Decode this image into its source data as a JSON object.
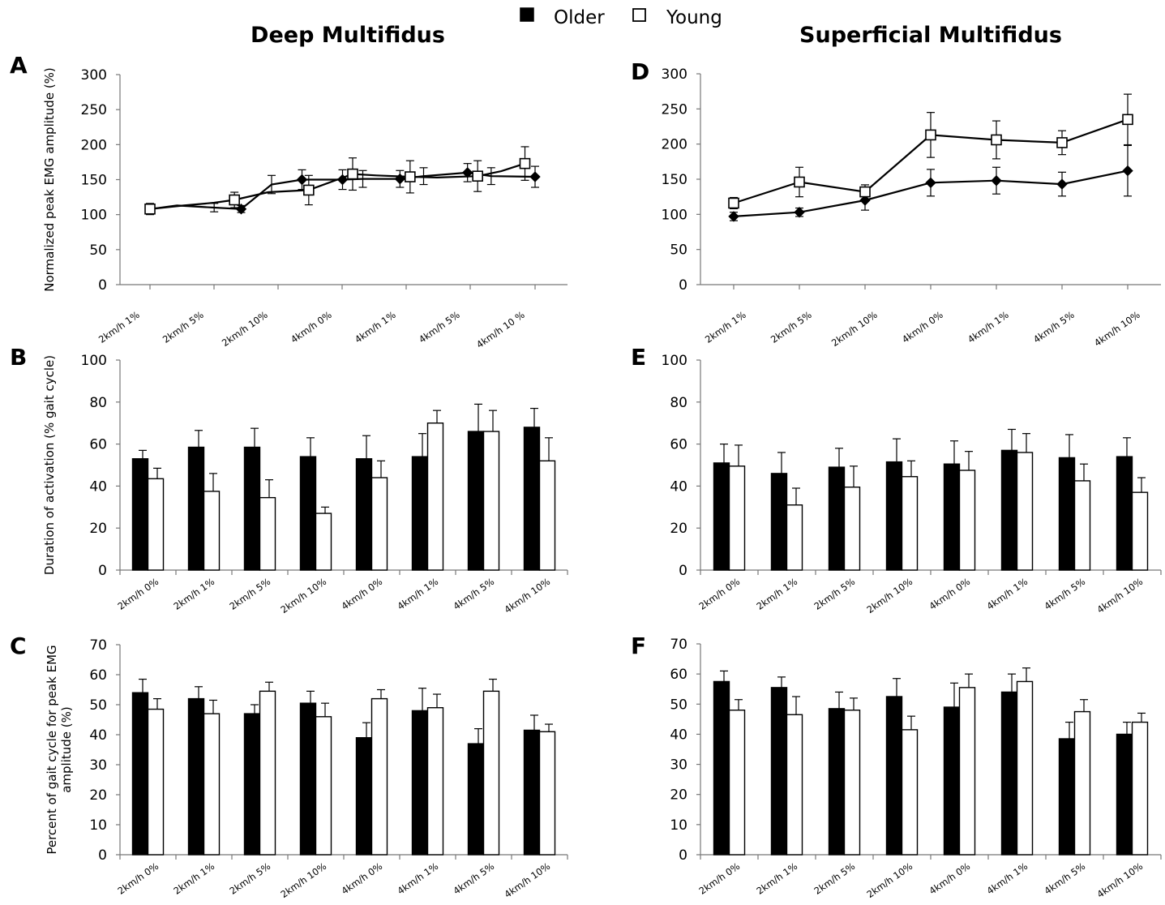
{
  "figure": {
    "column_titles": [
      "Deep Multifidus",
      "Superficial Multifidus"
    ],
    "legend": [
      {
        "label": "Older",
        "marker": "filled-square",
        "color": "#000000"
      },
      {
        "label": "Young",
        "marker": "open-square",
        "color": "#ffffff"
      }
    ]
  },
  "chart_data": [
    {
      "panel": "A",
      "type": "line",
      "ylabel": "Normalized peak EMG amplitude (%)",
      "ylim": [
        0,
        300
      ],
      "yticks": [
        0,
        50,
        100,
        150,
        200,
        250,
        300
      ],
      "categories": [
        "2km/h 1%",
        "2km/h 5%",
        "2km/h 10%",
        "4km/h 0%",
        "4km/h 1%",
        "4km/h 5%",
        "4km/h 10 %"
      ],
      "x": [
        0.5,
        1.3,
        2.4,
        3.2,
        4.1,
        5.0,
        6.2,
        6.8,
        7.9,
        8.6,
        9.9,
        10.6,
        11.9
      ],
      "series": [
        {
          "name": "Older",
          "marker": "diamond",
          "x": [
            0.5,
            1.3,
            2.4,
            3.2,
            4.1,
            5.0,
            6.2,
            6.8,
            7.9,
            8.6,
            9.9,
            10.6,
            11.9
          ],
          "values": [
            108,
            113,
            110,
            108,
            143,
            150,
            150,
            151,
            151,
            155,
            160,
            155,
            154
          ],
          "errors": [
            6,
            0,
            6,
            5,
            13,
            14,
            14,
            12,
            12,
            12,
            13,
            12,
            15
          ]
        },
        {
          "name": "Young",
          "marker": "square",
          "x": [
            0.5,
            1.5,
            2.4,
            3.0,
            4.0,
            5.2,
            6.5,
            7.2,
            8.2,
            9.0,
            10.2,
            10.9,
            11.6
          ],
          "values": [
            108,
            113,
            117,
            121,
            132,
            135,
            158,
            156,
            154,
            153,
            155,
            162,
            173
          ],
          "errors": [
            8,
            0,
            0,
            11,
            0,
            21,
            23,
            0,
            23,
            0,
            22,
            0,
            24
          ]
        }
      ]
    },
    {
      "panel": "B",
      "type": "bar",
      "ylabel": "Duration of activation (% gait cycle)",
      "ylim": [
        0,
        100
      ],
      "yticks": [
        0,
        20,
        40,
        60,
        80,
        100
      ],
      "categories": [
        "2km/h 0%",
        "2km/h 1%",
        "2km/h 5%",
        "2km/h 10%",
        "4km/h 0%",
        "4km/h 1%",
        "4km/h 5%",
        "4km/h 10%"
      ],
      "series": [
        {
          "name": "Older",
          "values": [
            53,
            58.5,
            58.5,
            54,
            53,
            54,
            66,
            68
          ],
          "errors": [
            4,
            8,
            9,
            9,
            11,
            11,
            13,
            9
          ]
        },
        {
          "name": "Young",
          "values": [
            43.5,
            37.5,
            34.5,
            27,
            44,
            70,
            66,
            52
          ],
          "errors": [
            5,
            8.5,
            8.5,
            3,
            8,
            6,
            10,
            11
          ]
        }
      ]
    },
    {
      "panel": "C",
      "type": "bar",
      "ylabel": "Percent of gait cycle for peak EMG amplitude (%)",
      "ylim": [
        0,
        70
      ],
      "yticks": [
        0,
        10,
        20,
        30,
        40,
        50,
        60,
        70
      ],
      "categories": [
        "2km/h 0%",
        "2km/h 1%",
        "2km/h 5%",
        "2km/h 10%",
        "4km/h 0%",
        "4km/h 1%",
        "4km/h 5%",
        "4km/h 10%"
      ],
      "series": [
        {
          "name": "Older",
          "values": [
            54,
            52,
            47,
            50.5,
            39,
            48,
            37,
            41.5
          ],
          "errors": [
            4.5,
            4,
            3,
            4,
            5,
            7.5,
            5,
            5
          ]
        },
        {
          "name": "Young",
          "values": [
            48.5,
            47,
            54.5,
            46,
            52,
            49,
            54.5,
            41
          ],
          "errors": [
            3.5,
            4.5,
            3,
            4.5,
            3,
            4.5,
            4,
            2.5
          ]
        }
      ]
    },
    {
      "panel": "D",
      "type": "line",
      "ylabel": "",
      "ylim": [
        0,
        300
      ],
      "yticks": [
        0,
        50,
        100,
        150,
        200,
        250,
        300
      ],
      "categories": [
        "2km/h 1%",
        "2km/h 5%",
        "2km/h 10%",
        "4km/h 0%",
        "4km/h 1%",
        "4km/h 5%",
        "4km/h 10%"
      ],
      "x": [
        0,
        1,
        2,
        3,
        4,
        5,
        6
      ],
      "series": [
        {
          "name": "Older",
          "marker": "diamond",
          "x": [
            0,
            1,
            2,
            3,
            4,
            5,
            6
          ],
          "values": [
            97,
            103,
            120,
            145,
            148,
            143,
            162
          ],
          "errors": [
            6,
            6,
            14,
            19,
            19,
            17,
            36
          ]
        },
        {
          "name": "Young",
          "marker": "square",
          "x": [
            0,
            1,
            2,
            3,
            4,
            5,
            6
          ],
          "values": [
            116,
            146,
            132,
            213,
            206,
            202,
            235
          ],
          "errors": [
            8,
            21,
            10,
            32,
            27,
            17,
            36
          ]
        }
      ]
    },
    {
      "panel": "E",
      "type": "bar",
      "ylabel": "",
      "ylim": [
        0,
        100
      ],
      "yticks": [
        0,
        20,
        40,
        60,
        80,
        100
      ],
      "categories": [
        "2km/h 0%",
        "2km/h 1%",
        "2km/h 5%",
        "2km/h 10%",
        "4km/h 0%",
        "4km/h 1%",
        "4km/h 5%",
        "4km/h 10%"
      ],
      "series": [
        {
          "name": "Older",
          "values": [
            51,
            46,
            49,
            51.5,
            50.5,
            57,
            53.5,
            54
          ],
          "errors": [
            9,
            10,
            9,
            11,
            11,
            10,
            11,
            9
          ]
        },
        {
          "name": "Young",
          "values": [
            49.5,
            31,
            39.5,
            44.5,
            47.5,
            56,
            42.5,
            37
          ],
          "errors": [
            10,
            8,
            10,
            7.5,
            9,
            9,
            8,
            7
          ]
        }
      ]
    },
    {
      "panel": "F",
      "type": "bar",
      "ylabel": "",
      "ylim": [
        0,
        70
      ],
      "yticks": [
        0,
        10,
        20,
        30,
        40,
        50,
        60,
        70
      ],
      "categories": [
        "2km/h 0%",
        "2km/h 1%",
        "2km/h 5%",
        "2km/h 10%",
        "4km/h 0%",
        "4km/h 1%",
        "4km/h 5%",
        "4km/h 10%"
      ],
      "series": [
        {
          "name": "Older",
          "values": [
            57.5,
            55.5,
            48.5,
            52.5,
            49,
            54,
            38.5,
            40
          ],
          "errors": [
            3.5,
            3.5,
            5.5,
            6,
            8,
            6,
            5.5,
            4
          ]
        },
        {
          "name": "Young",
          "values": [
            48,
            46.5,
            48,
            41.5,
            55.5,
            57.5,
            47.5,
            44
          ],
          "errors": [
            3.5,
            6,
            4,
            4.5,
            4.5,
            4.5,
            4,
            3
          ]
        }
      ]
    }
  ]
}
